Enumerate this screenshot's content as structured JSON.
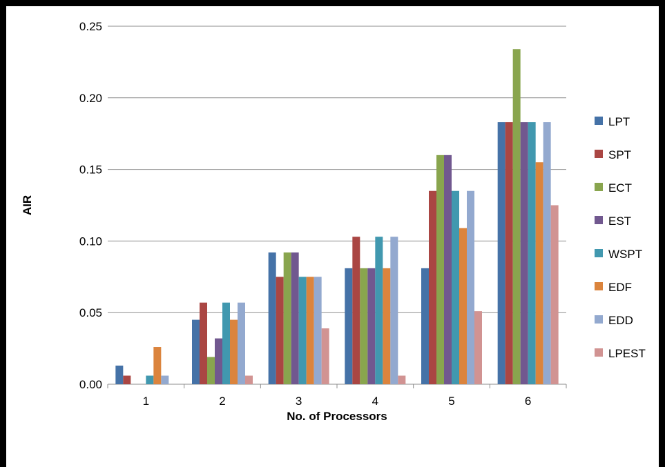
{
  "chart_data": {
    "type": "bar",
    "title": "",
    "xlabel": "No. of Processors",
    "ylabel": "AIR",
    "ylim": [
      0,
      0.25
    ],
    "ytick_values": [
      0,
      0.05,
      0.1,
      0.15,
      0.2,
      0.25
    ],
    "ytick_labels": [
      "0.00",
      "0.05",
      "0.10",
      "0.15",
      "0.20",
      "0.25"
    ],
    "categories": [
      "1",
      "2",
      "3",
      "4",
      "5",
      "6"
    ],
    "grid": "horizontal",
    "legend_position": "right",
    "series": [
      {
        "name": "LPT",
        "color": "#4572A7",
        "values": [
          0.013,
          0.045,
          0.092,
          0.081,
          0.081,
          0.183
        ]
      },
      {
        "name": "SPT",
        "color": "#AA4643",
        "values": [
          0.006,
          0.057,
          0.075,
          0.103,
          0.135,
          0.183
        ]
      },
      {
        "name": "ECT",
        "color": "#89A54E",
        "values": [
          0.0,
          0.019,
          0.092,
          0.081,
          0.16,
          0.234
        ]
      },
      {
        "name": "EST",
        "color": "#71588F",
        "values": [
          0.0,
          0.032,
          0.092,
          0.081,
          0.16,
          0.183
        ]
      },
      {
        "name": "WSPT",
        "color": "#4198AF",
        "values": [
          0.006,
          0.057,
          0.075,
          0.103,
          0.135,
          0.183
        ]
      },
      {
        "name": "EDF",
        "color": "#DB843D",
        "values": [
          0.026,
          0.045,
          0.075,
          0.081,
          0.109,
          0.155
        ]
      },
      {
        "name": "EDD",
        "color": "#93A9CF",
        "values": [
          0.006,
          0.057,
          0.075,
          0.103,
          0.135,
          0.183
        ]
      },
      {
        "name": "LPEST",
        "color": "#D19392",
        "values": [
          0.0,
          0.006,
          0.039,
          0.006,
          0.051,
          0.125
        ]
      }
    ]
  }
}
